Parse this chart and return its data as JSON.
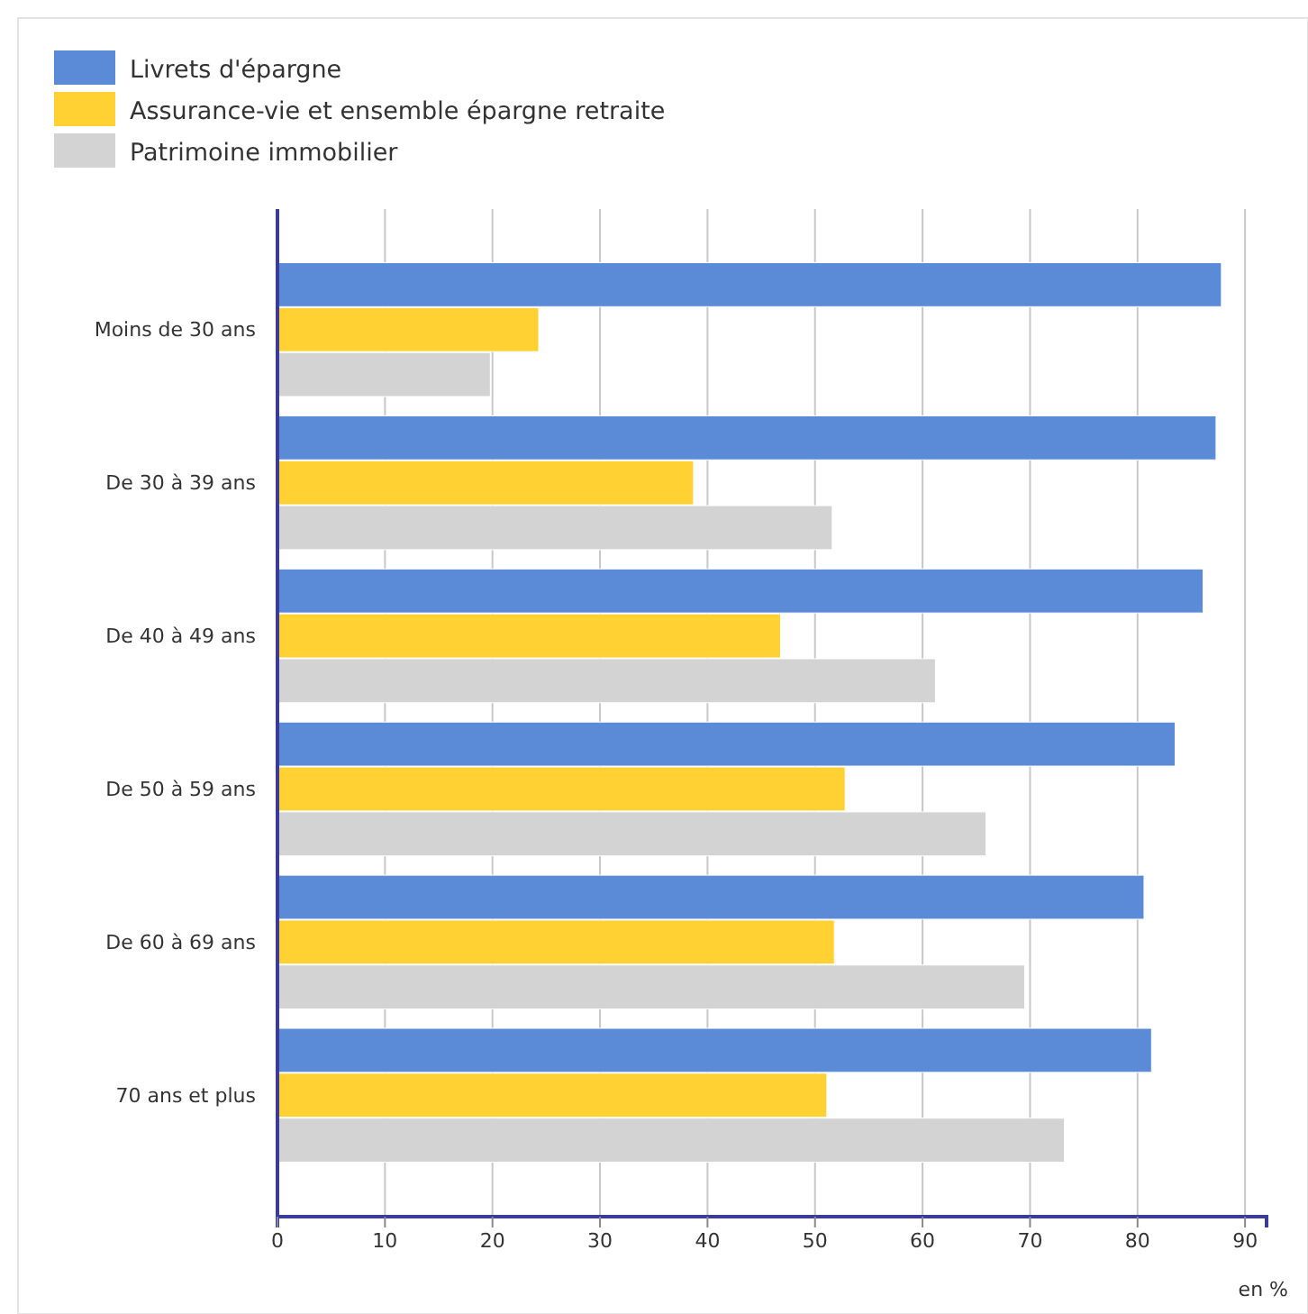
{
  "chart_data": {
    "type": "bar",
    "orientation": "horizontal",
    "xlabel": "en %",
    "categories": [
      "Moins de 30 ans",
      "De 30 à 39 ans",
      "De 40 à 49 ans",
      "De 50 à 59 ans",
      "De 60 à 69 ans",
      "70 ans et plus"
    ],
    "series": [
      {
        "name": "Livrets d'épargne",
        "color": "#5b8ad6",
        "values": [
          87.8,
          87.3,
          86.1,
          83.5,
          80.6,
          81.3
        ]
      },
      {
        "name": "Assurance-vie et ensemble épargne retraite",
        "color": "#ffd133",
        "values": [
          24.3,
          38.7,
          46.8,
          52.8,
          51.8,
          51.1
        ]
      },
      {
        "name": "Patrimoine immobilier",
        "color": "#d3d3d3",
        "values": [
          19.8,
          51.6,
          61.2,
          65.9,
          69.5,
          73.2
        ]
      }
    ],
    "xlim": [
      0,
      92
    ],
    "xticks": [
      0,
      10,
      20,
      30,
      40,
      50,
      60,
      70,
      80,
      90
    ],
    "grid": "x",
    "legend": "top left"
  }
}
